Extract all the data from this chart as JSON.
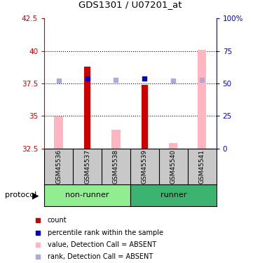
{
  "title": "GDS1301 / U07201_at",
  "samples": [
    "GSM45536",
    "GSM45537",
    "GSM45538",
    "GSM45539",
    "GSM45540",
    "GSM45541"
  ],
  "groups": [
    "non-runner",
    "non-runner",
    "non-runner",
    "runner",
    "runner",
    "runner"
  ],
  "nonrunner_color": "#90EE90",
  "runner_color": "#3CB371",
  "ylim_left": [
    32.5,
    42.5
  ],
  "ylim_right": [
    0,
    100
  ],
  "yticks_left": [
    32.5,
    35.0,
    37.5,
    40.0,
    42.5
  ],
  "yticks_right": [
    0,
    25,
    50,
    75,
    100
  ],
  "ytick_labels_left": [
    "32.5",
    "35",
    "37.5",
    "40",
    "42.5"
  ],
  "ytick_labels_right": [
    "0",
    "25",
    "50",
    "75",
    "100%"
  ],
  "hlines": [
    35.0,
    37.5,
    40.0
  ],
  "red_bar_values": [
    null,
    38.8,
    null,
    37.4,
    null,
    null
  ],
  "red_bar_color": "#CC0000",
  "red_bar_width": 0.22,
  "pink_bar_values": [
    34.95,
    null,
    33.95,
    null,
    32.9,
    40.1
  ],
  "pink_bar_color": "#FFB6C1",
  "pink_bar_width": 0.3,
  "blue_sq_values": [
    37.72,
    37.9,
    37.78,
    37.88,
    37.72,
    37.78
  ],
  "blue_sq_dark": [
    false,
    true,
    false,
    true,
    false,
    false
  ],
  "blue_dark_color": "#0000CC",
  "blue_light_color": "#AAAADD",
  "blue_sq_size": 25,
  "x_positions": [
    0,
    1,
    2,
    3,
    4,
    5
  ],
  "left_axis_color": "#CC0000",
  "right_axis_color": "#0000CC",
  "sample_bg_color": "#C8C8C8",
  "legend_items": [
    {
      "color": "#CC0000",
      "label": "count"
    },
    {
      "color": "#0000CC",
      "label": "percentile rank within the sample"
    },
    {
      "color": "#FFB6C1",
      "label": "value, Detection Call = ABSENT"
    },
    {
      "color": "#AAAADD",
      "label": "rank, Detection Call = ABSENT"
    }
  ]
}
